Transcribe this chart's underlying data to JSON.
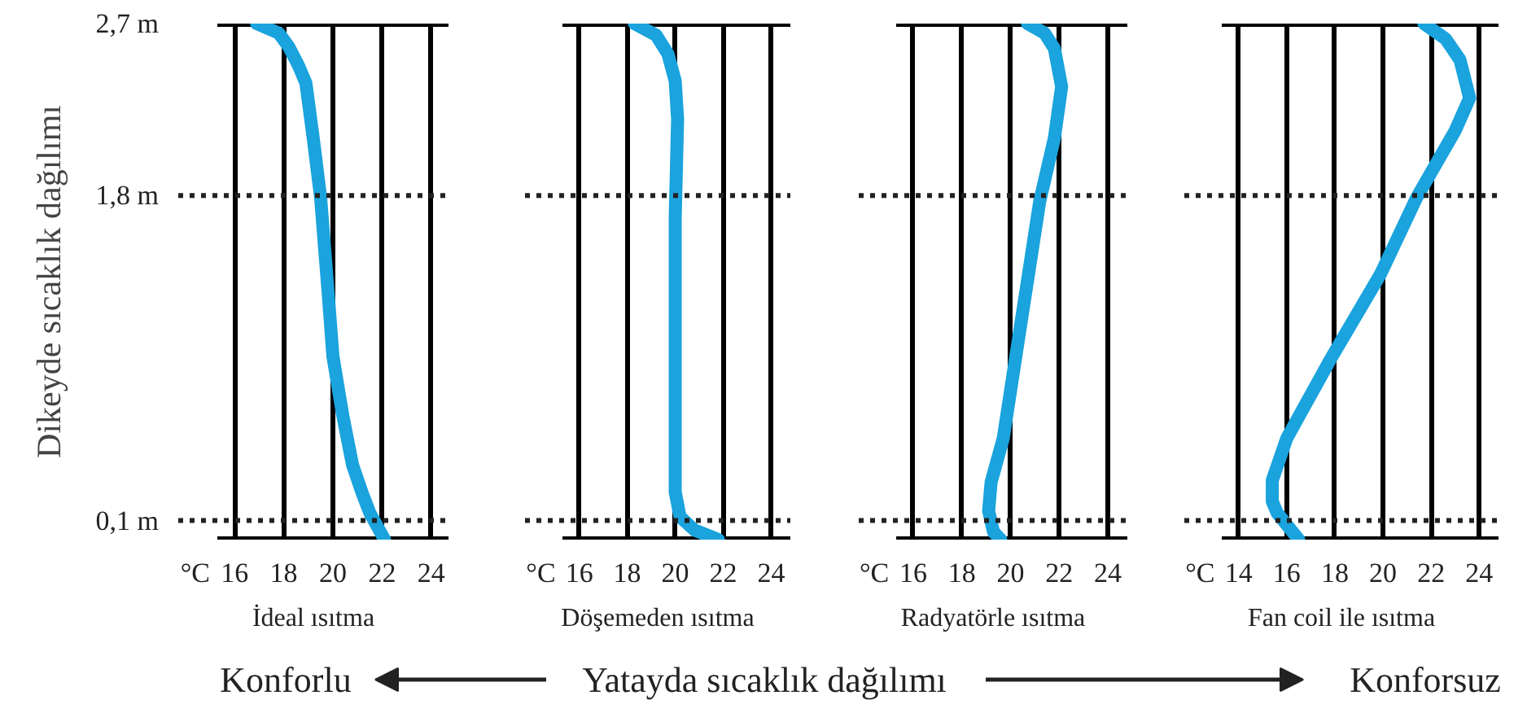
{
  "chart_data": [
    {
      "type": "line",
      "title": "İdeal ısıtma",
      "xlabel": "°C",
      "ylabel": "Dikeyde sıcaklık dağılımı",
      "xlim": [
        15.3,
        24.7
      ],
      "xticks": [
        16,
        18,
        20,
        22,
        24
      ],
      "ylim": [
        0,
        2.7
      ],
      "yticks": [
        {
          "value": 0.1,
          "label": "0,1 m"
        },
        {
          "value": 1.8,
          "label": "1,8 m"
        },
        {
          "value": 2.7,
          "label": "2,7 m"
        }
      ],
      "grid": "x",
      "line_style": "solid",
      "marker": "none",
      "ref_lines": [
        {
          "axis": "y",
          "value": 0.1,
          "line_style": "dotted"
        },
        {
          "axis": "y",
          "value": 1.8,
          "line_style": "dotted"
        }
      ],
      "series": [
        {
          "color": "#1aa3dd",
          "x": [
            16.9,
            17.8,
            18.2,
            18.6,
            18.9,
            19.2,
            19.5,
            19.8,
            20.0,
            20.4,
            20.8,
            21.2,
            21.5,
            22.1
          ],
          "values": [
            2.7,
            2.65,
            2.58,
            2.48,
            2.39,
            2.1,
            1.79,
            1.3,
            0.96,
            0.65,
            0.39,
            0.24,
            0.14,
            0.0
          ]
        }
      ],
      "annotations": [
        "Konforlu",
        "Yatayda sıcaklık dağılımı",
        "Konforsuz"
      ]
    },
    {
      "type": "line",
      "title": "Döşemeden ısıtma",
      "xlabel": "°C",
      "xlim": [
        15.3,
        24.8
      ],
      "xticks": [
        16,
        18,
        20,
        22,
        24
      ],
      "ylim": [
        0,
        2.7
      ],
      "tick_labels": "x",
      "grid": "x",
      "line_style": "solid",
      "marker": "none",
      "ref_lines": [
        {
          "axis": "y",
          "value": 0.1,
          "line_style": "dotted"
        },
        {
          "axis": "y",
          "value": 1.8,
          "line_style": "dotted"
        }
      ],
      "series": [
        {
          "color": "#1aa3dd",
          "x": [
            18.3,
            19.2,
            19.7,
            20.0,
            20.1,
            20.0,
            20.0,
            20.0,
            20.2,
            20.8,
            21.8
          ],
          "values": [
            2.7,
            2.64,
            2.54,
            2.4,
            2.2,
            1.68,
            0.8,
            0.25,
            0.12,
            0.05,
            0.0
          ]
        }
      ]
    },
    {
      "type": "line",
      "title": "Radyatörle ısıtma",
      "xlabel": "°C",
      "xlim": [
        15.3,
        24.8
      ],
      "xticks": [
        16,
        18,
        20,
        22,
        24
      ],
      "ylim": [
        0,
        2.7
      ],
      "tick_labels": "x",
      "grid": "x",
      "line_style": "solid",
      "marker": "none",
      "ref_lines": [
        {
          "axis": "y",
          "value": 0.1,
          "line_style": "dotted"
        },
        {
          "axis": "y",
          "value": 1.8,
          "line_style": "dotted"
        }
      ],
      "series": [
        {
          "color": "#1aa3dd",
          "x": [
            20.7,
            21.4,
            21.8,
            22.1,
            21.8,
            21.2,
            20.4,
            19.7,
            19.2,
            19.1,
            19.3,
            19.6
          ],
          "values": [
            2.7,
            2.65,
            2.57,
            2.37,
            2.1,
            1.77,
            1.11,
            0.53,
            0.3,
            0.15,
            0.04,
            0.0
          ]
        }
      ]
    },
    {
      "type": "line",
      "title": "Fan coil ile ısıtma",
      "xlabel": "°C",
      "xlim": [
        13.3,
        24.8
      ],
      "xticks": [
        14,
        16,
        18,
        20,
        22,
        24
      ],
      "ylim": [
        0,
        2.7
      ],
      "tick_labels": "x",
      "grid": "x",
      "line_style": "solid",
      "marker": "none",
      "ref_lines": [
        {
          "axis": "y",
          "value": 0.1,
          "line_style": "dotted"
        },
        {
          "axis": "y",
          "value": 1.8,
          "line_style": "dotted"
        }
      ],
      "series": [
        {
          "color": "#1aa3dd",
          "x": [
            21.7,
            22.6,
            23.2,
            23.6,
            23.0,
            21.4,
            19.9,
            17.8,
            16.0,
            15.4,
            15.4,
            15.6,
            16.5
          ],
          "values": [
            2.7,
            2.62,
            2.51,
            2.31,
            2.14,
            1.79,
            1.39,
            0.94,
            0.53,
            0.31,
            0.2,
            0.14,
            0.0
          ]
        }
      ]
    }
  ]
}
